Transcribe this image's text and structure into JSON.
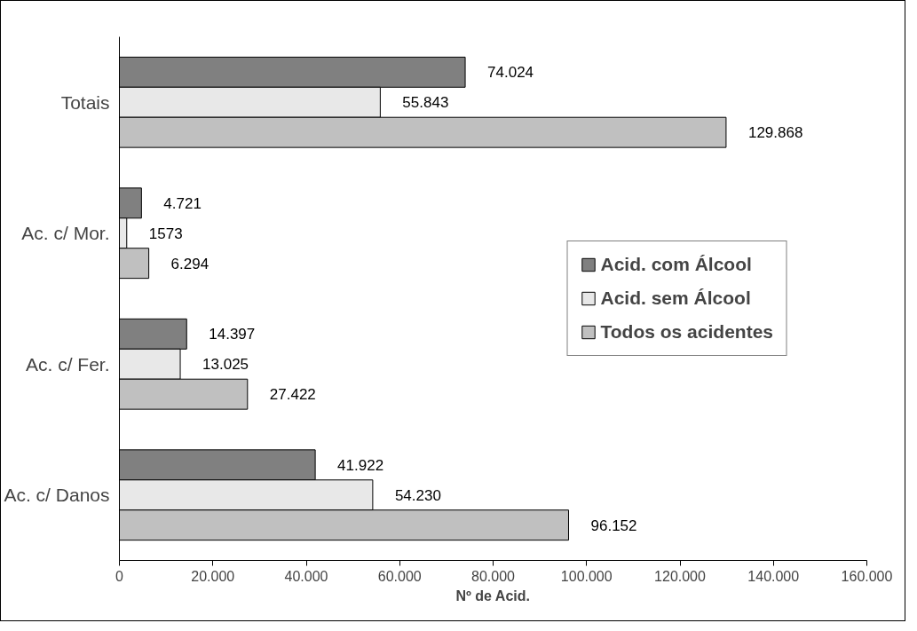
{
  "chart_data": {
    "type": "bar",
    "orientation": "horizontal",
    "xlabel": "Nº de Acid.",
    "categories": [
      "Totais",
      "Ac. c/ Mor.",
      "Ac. c/ Fer.",
      "Ac. c/ Danos"
    ],
    "series": [
      {
        "name": "Acid. com Álcool",
        "color": "#808080",
        "values": [
          74024,
          4721,
          14397,
          41922
        ],
        "value_labels": [
          "74.024",
          "4.721",
          "14.397",
          "41.922"
        ]
      },
      {
        "name": "Acid. sem Álcool",
        "color": "#e8e8e8",
        "values": [
          55843,
          1573,
          13025,
          54230
        ],
        "value_labels": [
          "55.843",
          "1573",
          "13.025",
          "54.230"
        ]
      },
      {
        "name": "Todos os acidentes",
        "color": "#c0c0c0",
        "values": [
          129868,
          6294,
          27422,
          96152
        ],
        "value_labels": [
          "129.868",
          "6.294",
          "27.422",
          "96.152"
        ]
      }
    ],
    "xlim": [
      0,
      160000
    ],
    "xticks": [
      0,
      {
        "value": 20000,
        "label": "20.000"
      },
      {
        "value": 40000,
        "label": "40.000"
      },
      {
        "value": 60000,
        "label": "60.000"
      },
      {
        "value": 80000,
        "label": "80.000"
      },
      {
        "value": 100000,
        "label": "100.000"
      },
      {
        "value": 120000,
        "label": "120.000"
      },
      {
        "value": 140000,
        "label": "140.000"
      },
      {
        "value": 160000,
        "label": "160.000"
      }
    ],
    "grid": false,
    "legend": "right"
  }
}
